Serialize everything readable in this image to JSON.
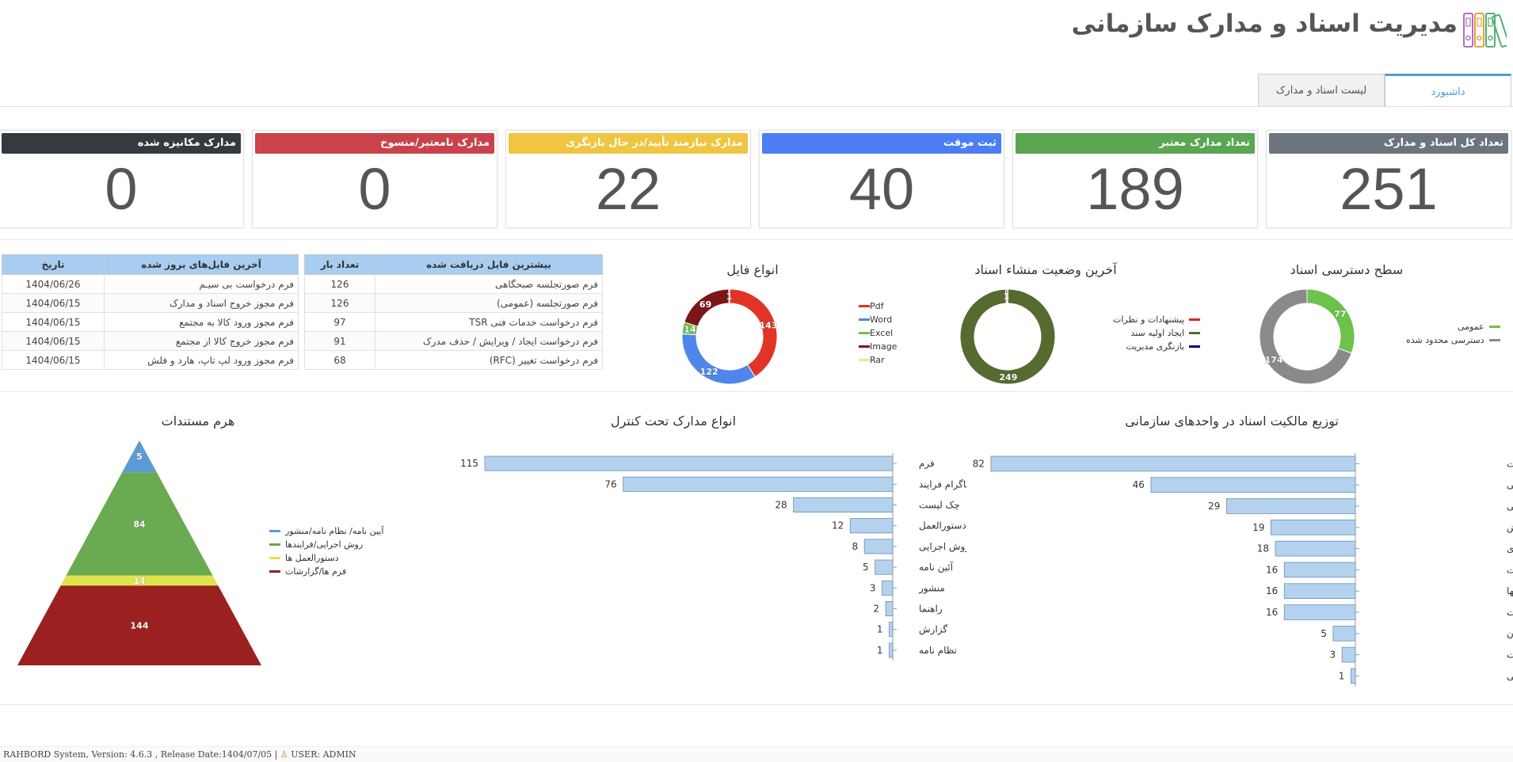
{
  "header": {
    "title": "مدیریت اسناد و مدارک سازمانی",
    "logo_icon": "binders-logo-icon"
  },
  "tabs": [
    {
      "label": "داشبورد"
    },
    {
      "label": "لیست اسناد و مدارک"
    }
  ],
  "stats": [
    {
      "label": "تعداد کل اسناد و مدارک",
      "value": "251",
      "color": "#6c757d"
    },
    {
      "label": "تعداد مدارک معتبر",
      "value": "189",
      "color": "#5aa652"
    },
    {
      "label": "ثبت موقت",
      "value": "40",
      "color": "#4b7ef2"
    },
    {
      "label": "مدارک نیازمند تأیید/در حال بازنگری",
      "value": "22",
      "color": "#efc541"
    },
    {
      "label": "مدارک نامعتبر/منسوخ",
      "value": "0",
      "color": "#c8444a"
    },
    {
      "label": "مدارک مکانیزه شده",
      "value": "0",
      "color": "#343a40"
    }
  ],
  "top_files": {
    "headers": [
      "بیشترین فایل دریافت شده",
      "تعداد بار"
    ],
    "rows": [
      [
        "فرم صورتجلسه صبحگاهی",
        "126"
      ],
      [
        "فرم صورتجلسه (عمومی)",
        "126"
      ],
      [
        "فرم درخواست خدمات فنی TSR",
        "97"
      ],
      [
        "فرم درخواست ایجاد / ویرایش / حذف مدرک",
        "91"
      ],
      [
        "فرم درخواست تغییر (RFC)",
        "68"
      ]
    ]
  },
  "recent_files": {
    "headers": [
      "آخرین فایل‌های بروز شده",
      "تاریخ"
    ],
    "rows": [
      [
        "فرم درخواست بی سیـم",
        "1404/06/26"
      ],
      [
        "فرم مجوز خروج اسناد و مدارک",
        "1404/06/15"
      ],
      [
        "فرم مجوز ورود کالا به مجتمع",
        "1404/06/15"
      ],
      [
        "فرم مجوز خروج کالا از مجتمع",
        "1404/06/15"
      ],
      [
        "فرم مجوز ورود لپ تاپ، هارد و فلش",
        "1404/06/15"
      ]
    ]
  },
  "chart_data": [
    {
      "id": "access",
      "type": "pie",
      "title": "سطح دسترسی اسناد",
      "categories": [
        "عمومی",
        "دسترسی محدود شده"
      ],
      "values": [
        77,
        174
      ],
      "colors": [
        "#6cc24a",
        "#8a8a8a"
      ]
    },
    {
      "id": "origin",
      "type": "pie",
      "title": "آخرین وضعیت منشاء اسناد",
      "categories": [
        "پیشنهادات و نظرات",
        "ایجاد اولیه سند",
        "بازنگری مدیریت"
      ],
      "values": [
        1,
        249,
        1
      ],
      "colors": [
        "#d62728",
        "#556b2f",
        "#000080"
      ]
    },
    {
      "id": "filetypes",
      "type": "pie",
      "title": "انواع فایل",
      "categories": [
        "Pdf",
        "Word",
        "Excel",
        "Image",
        "Rar"
      ],
      "values": [
        143,
        122,
        14,
        69,
        1
      ],
      "colors": [
        "#e03427",
        "#4f86ec",
        "#6cc24a",
        "#7b1616",
        "#f0e68c"
      ]
    },
    {
      "id": "ownership",
      "type": "bar",
      "title": "توزیع مالکیت اسناد در واحدهای سازمانی",
      "categories": [
        "مدیریت سلامت، ایمنی و محیط زیست",
        "مدیریت منابع انسانی",
        "مهندسی و خدمات فنی",
        "زنجیره تأمین، بازاریابی و فروش",
        "توسعه محصول، فناوری و نوآوری",
        "حراست، حفاظت و امنیت",
        "امور حقوقی و پیمانها",
        "برنامه ریزی، سامانه‌ها و فناوری اطلاعات",
        "مدیریت سازمان",
        "نگهداری و تعمیرات",
        "برند، مسئولیت اجتماعی و روابط عمومی"
      ],
      "values": [
        82,
        46,
        29,
        19,
        18,
        16,
        16,
        16,
        5,
        3,
        1
      ]
    },
    {
      "id": "controlled",
      "type": "bar",
      "title": "انواع مدارک تحت کنترل",
      "categories": [
        "فرم",
        "دیاگرام فرایند",
        "چک لیست",
        "دستورالعمل",
        "روش اجرایی",
        "آئین نامه",
        "منشور",
        "راهنما",
        "گزارش",
        "نظام نامه"
      ],
      "values": [
        115,
        76,
        28,
        12,
        8,
        5,
        3,
        2,
        1,
        1
      ]
    },
    {
      "id": "pyramid",
      "type": "pyramid",
      "title": "هرم مستندات",
      "categories": [
        "آیین نامه/ نظام نامه/منشور",
        "روش اجرایی/فرایندها",
        "دستورالعمل ها",
        "فرم ها/گزارشات"
      ],
      "values": [
        5,
        84,
        14,
        144
      ],
      "colors": [
        "#5b9bd5",
        "#6aaa50",
        "#dfe34f",
        "#9b2020"
      ]
    }
  ],
  "footer": {
    "text": "RAHBORD System,  Version:  4.6.3  ,  Release  Date:1404/07/05  |",
    "user": "USER:  ADMIN"
  }
}
